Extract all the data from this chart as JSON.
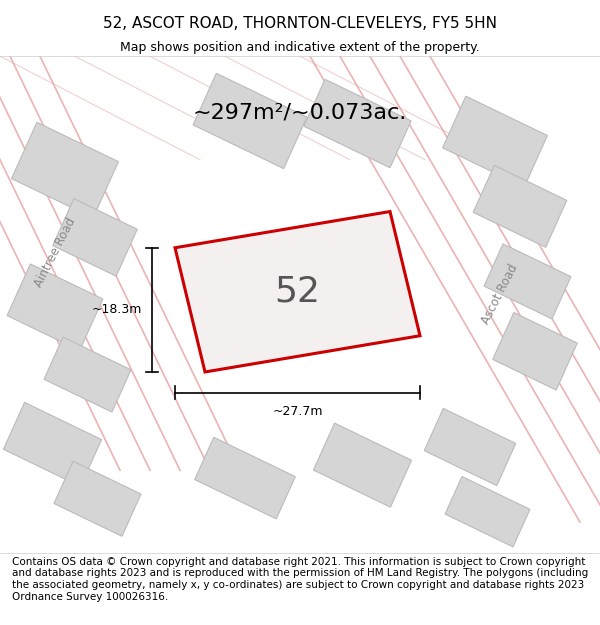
{
  "title": "52, ASCOT ROAD, THORNTON-CLEVELEYS, FY5 5HN",
  "subtitle": "Map shows position and indicative extent of the property.",
  "area_text": "~297m²/~0.073ac.",
  "property_number": "52",
  "dim_width": "~27.7m",
  "dim_height": "~18.3m",
  "footer": "Contains OS data © Crown copyright and database right 2021. This information is subject to Crown copyright and database rights 2023 and is reproduced with the permission of HM Land Registry. The polygons (including the associated geometry, namely x, y co-ordinates) are subject to Crown copyright and database rights 2023 Ordnance Survey 100026316.",
  "bg_color": "#e8e8e8",
  "map_bg": "#f0f0f0",
  "property_fill": "#f5f0f0",
  "property_edge": "#cc0000",
  "road_label_left": "Aintree Road",
  "road_label_right": "Ascot Road",
  "other_buildings_color": "#d8d8d8",
  "other_buildings_edge": "#c0c0c0",
  "road_line_color": "#e8a0a0",
  "title_fontsize": 11,
  "subtitle_fontsize": 9,
  "footer_fontsize": 7.5
}
